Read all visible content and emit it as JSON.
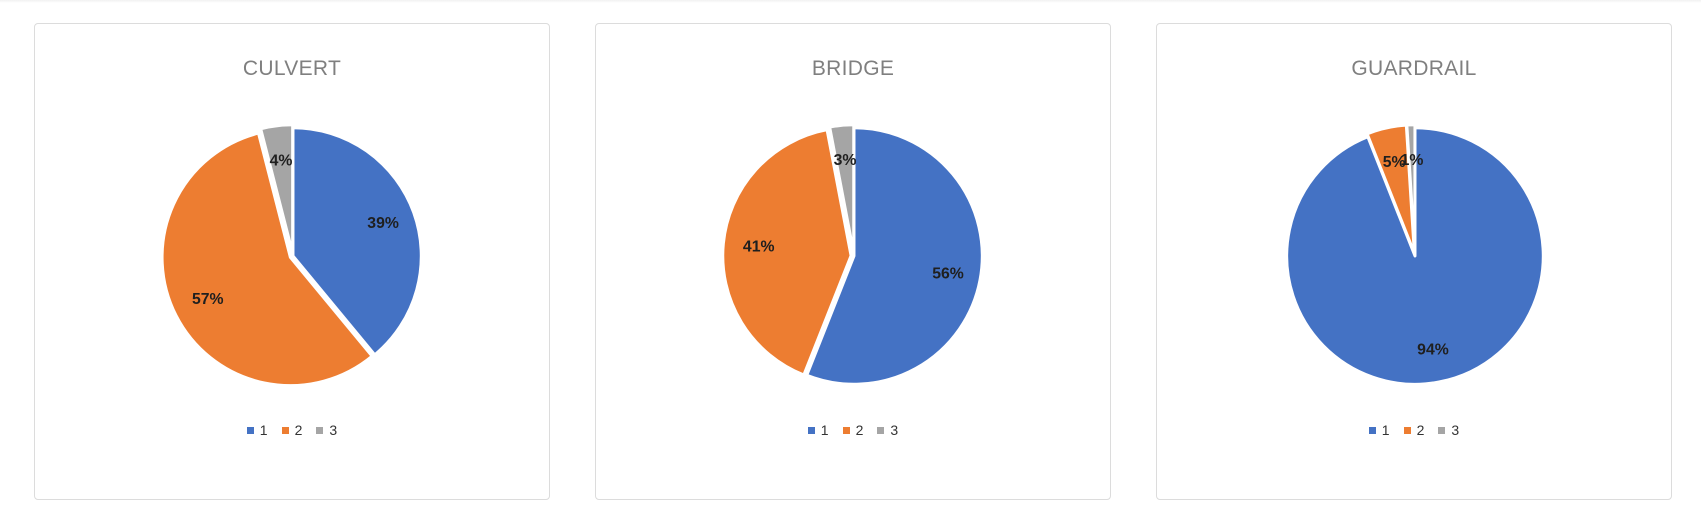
{
  "colors": {
    "series_1": "#4472C4",
    "series_2": "#ED7D31",
    "series_3": "#A5A5A5"
  },
  "chart_data": [
    {
      "type": "pie",
      "title": "CULVERT",
      "categories": [
        "1",
        "2",
        "3"
      ],
      "values": [
        39,
        57,
        4
      ],
      "data_labels": [
        "39%",
        "57%",
        "4%"
      ],
      "legend_position": "bottom"
    },
    {
      "type": "pie",
      "title": "BRIDGE",
      "categories": [
        "1",
        "2",
        "3"
      ],
      "values": [
        56,
        41,
        3
      ],
      "data_labels": [
        "56%",
        "41%",
        "3%"
      ],
      "legend_position": "bottom"
    },
    {
      "type": "pie",
      "title": "GUARDRAIL",
      "categories": [
        "1",
        "2",
        "3"
      ],
      "values": [
        94,
        5,
        1
      ],
      "data_labels": [
        "94%",
        "5%",
        "1%"
      ],
      "legend_position": "bottom"
    }
  ]
}
